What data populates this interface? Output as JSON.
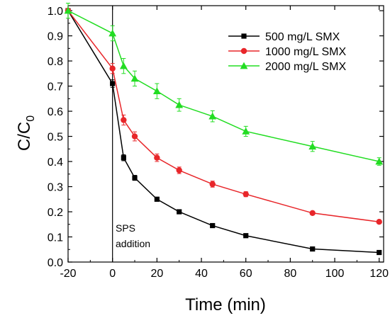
{
  "chart_data": {
    "type": "line",
    "title": "",
    "xlabel": "Time (min)",
    "ylabel": "C/C",
    "ylabel_sub": "0",
    "xlim": [
      -20,
      122
    ],
    "ylim": [
      0.0,
      1.02
    ],
    "xticks": [
      -20,
      0,
      20,
      40,
      60,
      80,
      100,
      120
    ],
    "yticks": [
      0.0,
      0.1,
      0.2,
      0.3,
      0.4,
      0.5,
      0.6,
      0.7,
      0.8,
      0.9,
      1.0
    ],
    "xtick_labels": [
      "-20",
      "0",
      "20",
      "40",
      "60",
      "80",
      "100",
      "120"
    ],
    "ytick_labels": [
      "0.0",
      "0.1",
      "0.2",
      "0.3",
      "0.4",
      "0.5",
      "0.6",
      "0.7",
      "0.8",
      "0.9",
      "1.0"
    ],
    "grid": false,
    "legend_position": "top-right",
    "annotation": {
      "line1": "SPS",
      "line2": "addition",
      "x": 0
    },
    "series": [
      {
        "name": "500 mg/L SMX",
        "color": "#000000",
        "marker": "square",
        "x": [
          -20,
          0,
          5,
          10,
          20,
          30,
          45,
          60,
          90,
          120
        ],
        "y": [
          1.0,
          0.71,
          0.415,
          0.335,
          0.25,
          0.2,
          0.145,
          0.105,
          0.052,
          0.038
        ],
        "err": [
          0.0,
          0.015,
          0.012,
          0.01,
          0.008,
          0.007,
          0.005,
          0.005,
          0.003,
          0.003
        ]
      },
      {
        "name": "1000 mg/L SMX",
        "color": "#e8262a",
        "marker": "circle",
        "x": [
          -20,
          0,
          5,
          10,
          20,
          30,
          45,
          60,
          90,
          120
        ],
        "y": [
          1.0,
          0.77,
          0.565,
          0.5,
          0.415,
          0.365,
          0.31,
          0.27,
          0.195,
          0.16
        ],
        "err": [
          0.0,
          0.02,
          0.02,
          0.018,
          0.015,
          0.013,
          0.012,
          0.01,
          0.006,
          0.006
        ]
      },
      {
        "name": "2000 mg/L SMX",
        "color": "#22dd22",
        "marker": "triangle",
        "x": [
          -20,
          0,
          5,
          10,
          20,
          30,
          45,
          60,
          90,
          120
        ],
        "y": [
          1.0,
          0.91,
          0.78,
          0.73,
          0.68,
          0.625,
          0.58,
          0.52,
          0.46,
          0.4
        ],
        "err": [
          0.03,
          0.03,
          0.03,
          0.03,
          0.03,
          0.025,
          0.022,
          0.02,
          0.02,
          0.015
        ]
      }
    ]
  }
}
